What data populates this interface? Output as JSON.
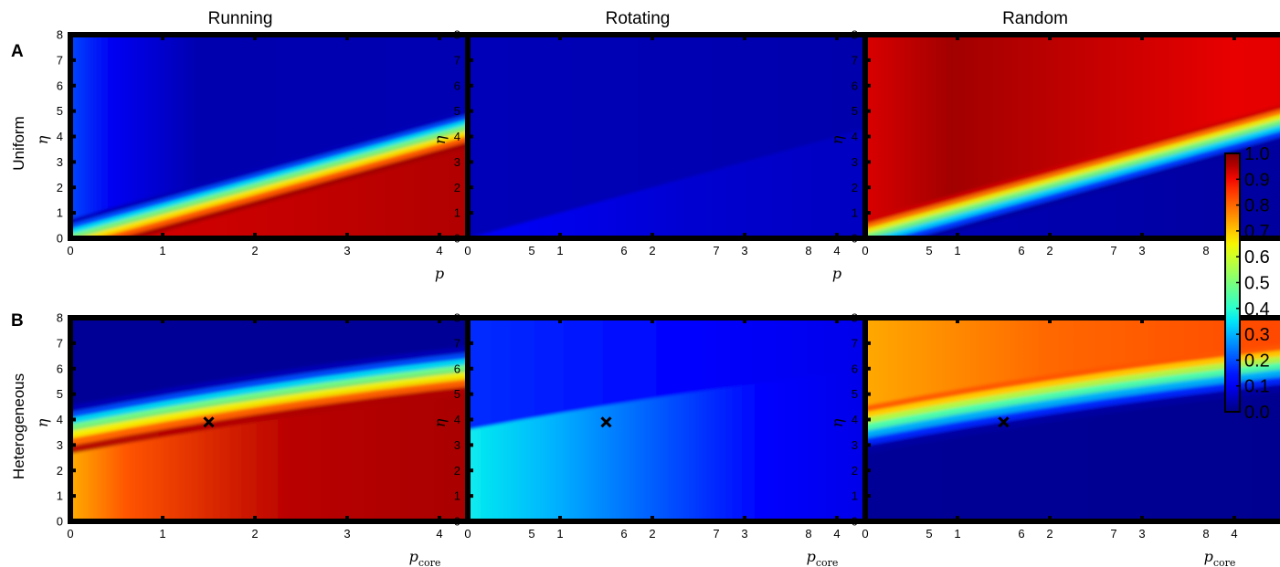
{
  "figure": {
    "column_titles": [
      "Running",
      "Rotating",
      "Random"
    ],
    "row_letters": [
      "A",
      "B"
    ],
    "row_labels": [
      "Uniform",
      "Heterogeneous"
    ]
  },
  "chart_data": {
    "type": "heatmap",
    "colormap": "jet",
    "xlim": [
      0,
      8
    ],
    "ylim": [
      0,
      8
    ],
    "xticks": [
      "0",
      "1",
      "2",
      "3",
      "4",
      "5",
      "6",
      "7",
      "8"
    ],
    "yticks": [
      "0",
      "1",
      "2",
      "3",
      "4",
      "5",
      "6",
      "7",
      "8"
    ],
    "ylabel": "η",
    "xlabel_uniform": "p",
    "xlabel_heterogeneous_main": "p",
    "xlabel_heterogeneous_sub": "core",
    "colorbar": {
      "range": [
        0,
        1
      ],
      "ticks": [
        "0.0",
        "0.1",
        "0.2",
        "0.3",
        "0.4",
        "0.5",
        "0.6",
        "0.7",
        "0.8",
        "0.9",
        "1.0"
      ]
    },
    "panels": [
      {
        "row": "Uniform",
        "column": "Running",
        "boundary": "eta = p",
        "value_above": 0.05,
        "value_below": 0.97,
        "marker": null
      },
      {
        "row": "Uniform",
        "column": "Rotating",
        "boundary": "eta = p",
        "value_above": 0.05,
        "value_below": 0.05,
        "marker": null
      },
      {
        "row": "Uniform",
        "column": "Random",
        "boundary": "eta = p",
        "value_above": 0.93,
        "value_below": 0.03,
        "marker": null
      },
      {
        "row": "Heterogeneous",
        "column": "Running",
        "boundary": "curve from (0, 3.6) to (8, 7.0)",
        "value_above": 0.05,
        "value_below": 0.96,
        "marker": {
          "x": 1.5,
          "y": 3.9
        }
      },
      {
        "row": "Heterogeneous",
        "column": "Rotating",
        "boundary": "curve from (0, 3.6) to (8, 7.0)",
        "value_above": 0.1,
        "value_below": 0.25,
        "marker": {
          "x": 1.5,
          "y": 3.9
        }
      },
      {
        "row": "Heterogeneous",
        "column": "Random",
        "boundary": "curve from (0, 3.6) to (8, 7.0)",
        "value_above": 0.82,
        "value_below": 0.03,
        "marker": {
          "x": 1.5,
          "y": 3.9
        }
      }
    ]
  }
}
